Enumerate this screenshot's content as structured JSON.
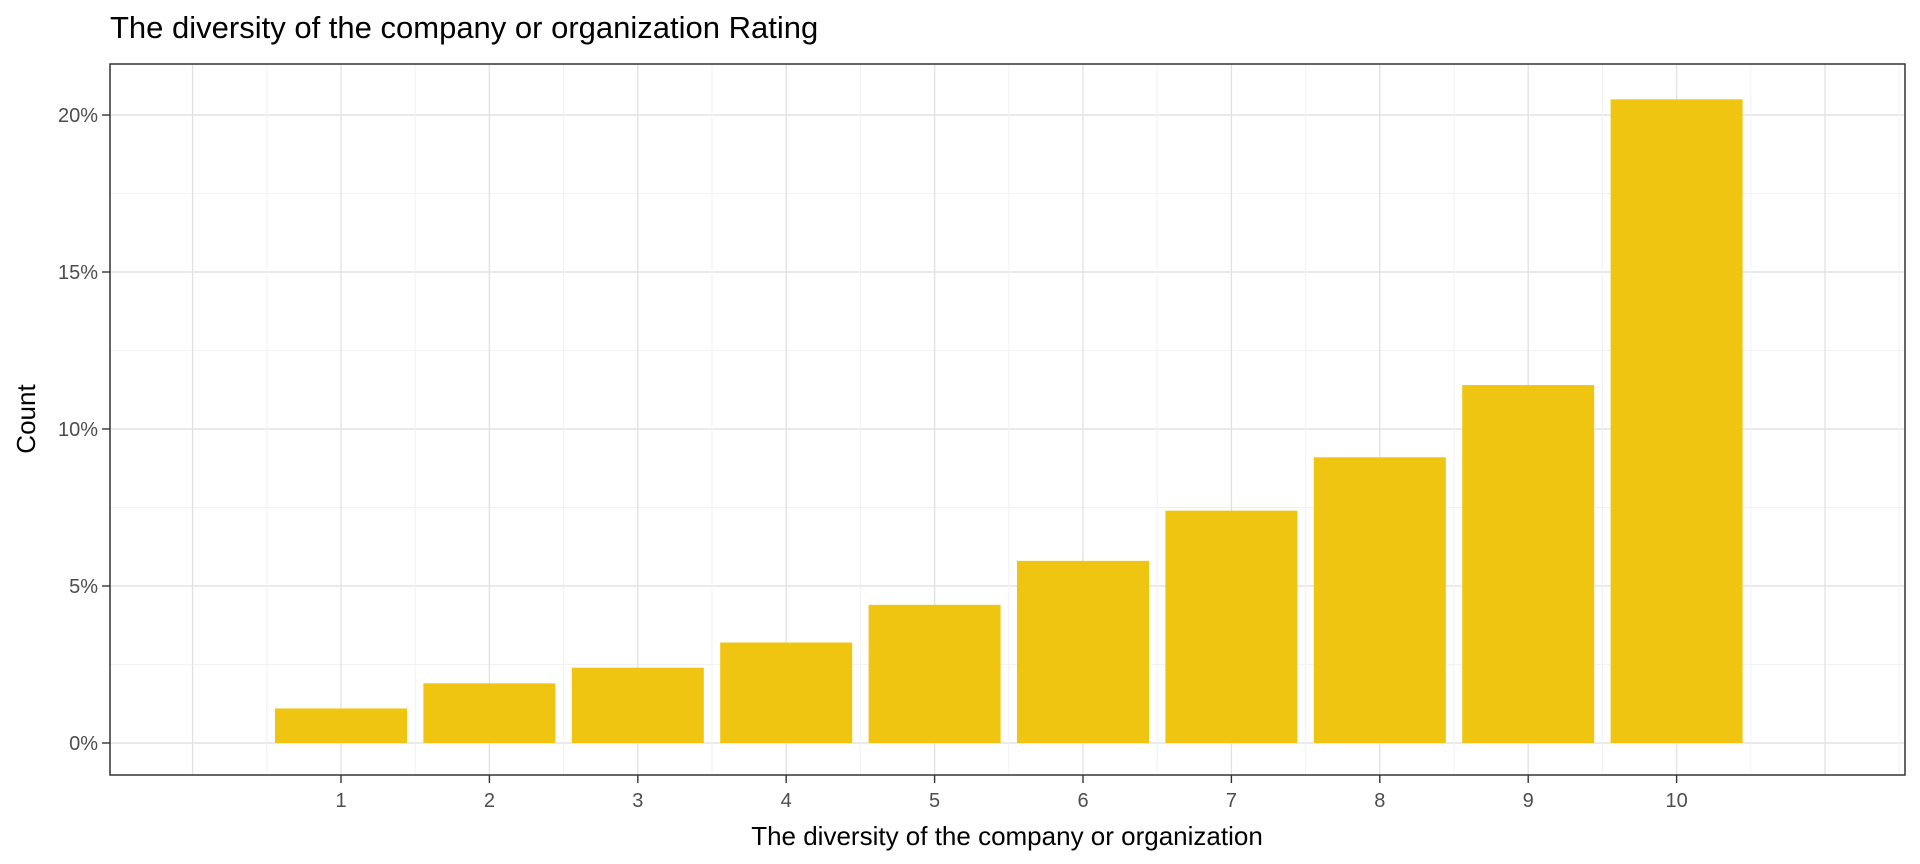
{
  "chart_data": {
    "type": "bar",
    "title": "The diversity of the company or organization Rating",
    "xlabel": "The diversity of the company or organization",
    "ylabel": "Count",
    "categories": [
      "1",
      "2",
      "3",
      "4",
      "5",
      "6",
      "7",
      "8",
      "9",
      "10"
    ],
    "values": [
      1.1,
      1.9,
      2.4,
      3.2,
      4.4,
      5.8,
      7.4,
      9.1,
      11.4,
      20.5
    ],
    "value_unit": "%",
    "ylim": [
      0,
      21.2
    ],
    "y_ticks": [
      "0%",
      "5%",
      "10%",
      "15%",
      "20%"
    ],
    "grid": true,
    "legend": "none",
    "bar_color": "#F0C512"
  }
}
